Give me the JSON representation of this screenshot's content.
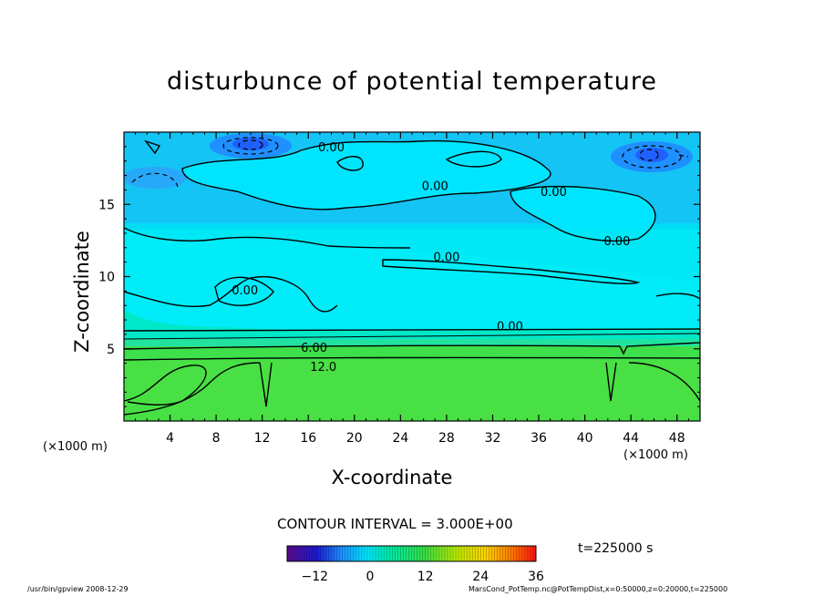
{
  "chart_data": {
    "type": "heatmap",
    "title": "disturbunce of potential temperature",
    "xlabel": "X-coordinate",
    "ylabel": "Z-coordinate",
    "x_unit_left": "(×1000 m)",
    "x_unit_right": "(×1000 m)",
    "xlim": [
      0,
      50
    ],
    "ylim": [
      0,
      20
    ],
    "x_ticks": [
      4,
      8,
      12,
      16,
      20,
      24,
      28,
      32,
      36,
      40,
      44,
      48
    ],
    "y_ticks": [
      5,
      10,
      15
    ],
    "contour_interval": "CONTOUR INTERVAL = 3.000E+00",
    "contour_labels": [
      {
        "text": "0.00",
        "x": 18.0,
        "z": 19.0
      },
      {
        "text": "0.00",
        "x": 27.0,
        "z": 16.3
      },
      {
        "text": "0.00",
        "x": 37.3,
        "z": 15.9
      },
      {
        "text": "0.00",
        "x": 42.8,
        "z": 12.5
      },
      {
        "text": "0.00",
        "x": 28.0,
        "z": 11.4
      },
      {
        "text": "0.00",
        "x": 10.5,
        "z": 9.1
      },
      {
        "text": "0.00",
        "x": 33.5,
        "z": 6.6
      },
      {
        "text": "6.00",
        "x": 16.5,
        "z": 5.1
      },
      {
        "text": "12.0",
        "x": 17.3,
        "z": 3.8
      }
    ],
    "colorbar": {
      "ticks": [
        -12,
        0,
        12,
        24,
        36
      ],
      "range": [
        -18,
        36
      ]
    },
    "time": "t=225000 s"
  },
  "footer": {
    "left": "/usr/bin/gpview   2008-12-29",
    "right": "MarsCond_PotTemp.nc@PotTempDist,x=0:50000,z=0:20000,t=225000"
  },
  "colors": {
    "cold": "#1e90ff",
    "cyan": "#00e5ff",
    "green": "#33dd44"
  }
}
